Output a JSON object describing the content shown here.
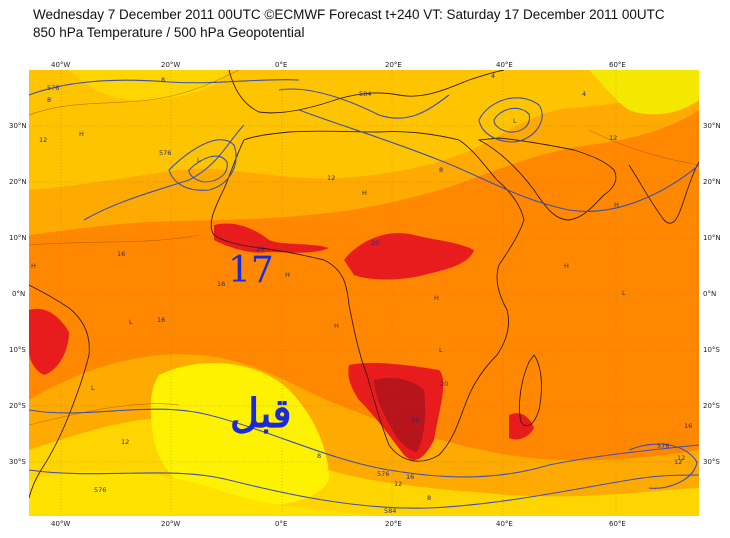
{
  "header": {
    "line1": "Wednesday 7 December 2011 00UTC ©ECMWF Forecast t+240 VT: Saturday 17 December 2011 00UTC",
    "line2": "850 hPa Temperature / 500 hPa Geopotential"
  },
  "lon_ticks": [
    "40°W",
    "20°W",
    "0°E",
    "20°E",
    "40°E",
    "60°E"
  ],
  "lat_ticks_left": [
    "30°N",
    "20°N",
    "10°N",
    "0°N",
    "10°S",
    "20°S",
    "30°S"
  ],
  "lat_ticks_right": [
    "30°N",
    "20°N",
    "10°N",
    "0°N",
    "10°S",
    "20°S",
    "30°S"
  ],
  "overlay": {
    "number": "17",
    "arabic": "قبل"
  },
  "contour_labels": [
    "576",
    "584",
    "576",
    "12",
    "16",
    "16",
    "16",
    "20",
    "20",
    "20",
    "24",
    "12",
    "8",
    "4",
    "8",
    "12",
    "4",
    "8",
    "12",
    "576",
    "12",
    "16",
    "12",
    "8",
    "576",
    "584",
    "16",
    "12",
    "576",
    "8"
  ],
  "pressure_marks": [
    "H",
    "L",
    "H",
    "L",
    "H",
    "H",
    "L",
    "H",
    "L",
    "H",
    "H",
    "L",
    "H",
    "L"
  ],
  "colors": {
    "cold": "#f2f200",
    "cool": "#ffd500",
    "mild": "#ffaa00",
    "warm": "#ff7f00",
    "hot": "#e81c1c",
    "very_hot": "#b8141c",
    "contour": "#3d4fb0",
    "coast": "#3a1a10"
  }
}
